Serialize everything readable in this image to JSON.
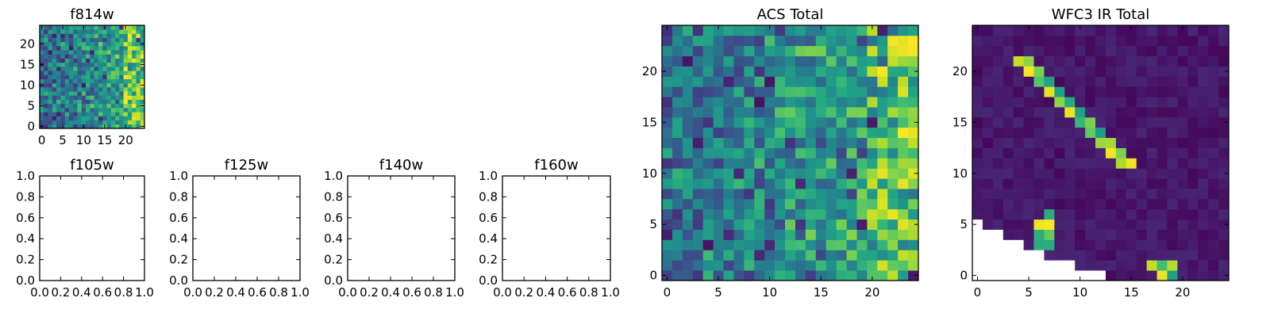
{
  "chart_data": [
    {
      "type": "heatmap",
      "title": "f814w",
      "xlim": [
        -0.5,
        24.5
      ],
      "ylim": [
        -0.5,
        24.5
      ],
      "xticks": [
        0,
        5,
        10,
        15,
        20
      ],
      "xtick_labels": [
        "0",
        "5",
        "10",
        "15",
        "20"
      ],
      "yticks": [
        0,
        5,
        10,
        15,
        20
      ],
      "ytick_labels": [
        "0",
        "5",
        "10",
        "15",
        "20"
      ],
      "grid_size": [
        25,
        25
      ],
      "colormap": "viridis",
      "pattern": "acs_noise",
      "seed": 17
    },
    {
      "type": "empty",
      "title": "f105w",
      "xlim": [
        0,
        1
      ],
      "ylim": [
        0,
        1
      ],
      "xticks": [
        0,
        0.2,
        0.4,
        0.6,
        0.8,
        1.0
      ],
      "xtick_labels": [
        "0.0",
        "0.2",
        "0.4",
        "0.6",
        "0.8",
        "1.0"
      ],
      "yticks": [
        0,
        0.2,
        0.4,
        0.6,
        0.8,
        1.0
      ],
      "ytick_labels": [
        "0.0",
        "0.2",
        "0.4",
        "0.6",
        "0.8",
        "1.0"
      ]
    },
    {
      "type": "empty",
      "title": "f125w",
      "xlim": [
        0,
        1
      ],
      "ylim": [
        0,
        1
      ],
      "xticks": [
        0,
        0.2,
        0.4,
        0.6,
        0.8,
        1.0
      ],
      "xtick_labels": [
        "0.0",
        "0.2",
        "0.4",
        "0.6",
        "0.8",
        "1.0"
      ],
      "yticks": [
        0,
        0.2,
        0.4,
        0.6,
        0.8,
        1.0
      ],
      "ytick_labels": [
        "0.0",
        "0.2",
        "0.4",
        "0.6",
        "0.8",
        "1.0"
      ]
    },
    {
      "type": "empty",
      "title": "f140w",
      "xlim": [
        0,
        1
      ],
      "ylim": [
        0,
        1
      ],
      "xticks": [
        0,
        0.2,
        0.4,
        0.6,
        0.8,
        1.0
      ],
      "xtick_labels": [
        "0.0",
        "0.2",
        "0.4",
        "0.6",
        "0.8",
        "1.0"
      ],
      "yticks": [
        0,
        0.2,
        0.4,
        0.6,
        0.8,
        1.0
      ],
      "ytick_labels": [
        "0.0",
        "0.2",
        "0.4",
        "0.6",
        "0.8",
        "1.0"
      ]
    },
    {
      "type": "empty",
      "title": "f160w",
      "xlim": [
        0,
        1
      ],
      "ylim": [
        0,
        1
      ],
      "xticks": [
        0,
        0.2,
        0.4,
        0.6,
        0.8,
        1.0
      ],
      "xtick_labels": [
        "0.0",
        "0.2",
        "0.4",
        "0.6",
        "0.8",
        "1.0"
      ],
      "yticks": [
        0,
        0.2,
        0.4,
        0.6,
        0.8,
        1.0
      ],
      "ytick_labels": [
        "0.0",
        "0.2",
        "0.4",
        "0.6",
        "0.8",
        "1.0"
      ]
    },
    {
      "type": "heatmap",
      "title": "ACS Total",
      "xlim": [
        -0.5,
        24.5
      ],
      "ylim": [
        -0.5,
        24.5
      ],
      "xticks": [
        0,
        5,
        10,
        15,
        20
      ],
      "xtick_labels": [
        "0",
        "5",
        "10",
        "15",
        "20"
      ],
      "yticks": [
        0,
        5,
        10,
        15,
        20
      ],
      "ytick_labels": [
        "0",
        "5",
        "10",
        "15",
        "20"
      ],
      "grid_size": [
        25,
        25
      ],
      "colormap": "viridis",
      "pattern": "acs_noise",
      "seed": 29
    },
    {
      "type": "heatmap",
      "title": "WFC3 IR Total",
      "xlim": [
        -0.5,
        24.5
      ],
      "ylim": [
        -0.5,
        24.5
      ],
      "xticks": [
        0,
        5,
        10,
        15,
        20
      ],
      "xtick_labels": [
        "0",
        "5",
        "10",
        "15",
        "20"
      ],
      "yticks": [
        0,
        5,
        10,
        15,
        20
      ],
      "ytick_labels": [
        "0",
        "5",
        "10",
        "15",
        "20"
      ],
      "grid_size": [
        25,
        25
      ],
      "colormap": "viridis",
      "pattern": "wfc3_streak",
      "seed": 43,
      "bright_cells": [
        [
          4,
          21
        ],
        [
          5,
          21
        ],
        [
          5,
          20
        ],
        [
          6,
          20
        ],
        [
          6,
          19
        ],
        [
          7,
          19
        ],
        [
          7,
          18
        ],
        [
          8,
          18
        ],
        [
          8,
          17
        ],
        [
          9,
          17
        ],
        [
          9,
          16
        ],
        [
          10,
          16
        ],
        [
          10,
          15
        ],
        [
          11,
          15
        ],
        [
          11,
          14
        ],
        [
          12,
          14
        ],
        [
          12,
          13
        ],
        [
          13,
          13
        ],
        [
          13,
          12
        ],
        [
          14,
          12
        ],
        [
          14,
          11
        ],
        [
          15,
          11
        ],
        [
          7,
          6
        ],
        [
          7,
          5
        ],
        [
          6,
          5
        ],
        [
          7,
          4
        ],
        [
          6,
          4
        ],
        [
          7,
          3
        ],
        [
          6,
          3
        ],
        [
          18,
          1
        ],
        [
          18,
          0
        ],
        [
          17,
          1
        ],
        [
          19,
          0
        ],
        [
          19,
          1
        ]
      ],
      "blank_cells": [
        [
          0,
          5
        ],
        [
          0,
          4
        ],
        [
          1,
          4
        ],
        [
          2,
          4
        ],
        [
          0,
          3
        ],
        [
          1,
          3
        ],
        [
          2,
          3
        ],
        [
          3,
          3
        ],
        [
          4,
          3
        ],
        [
          0,
          2
        ],
        [
          1,
          2
        ],
        [
          2,
          2
        ],
        [
          3,
          2
        ],
        [
          4,
          2
        ],
        [
          5,
          2
        ],
        [
          6,
          2
        ],
        [
          0,
          1
        ],
        [
          1,
          1
        ],
        [
          2,
          1
        ],
        [
          3,
          1
        ],
        [
          4,
          1
        ],
        [
          5,
          1
        ],
        [
          6,
          1
        ],
        [
          7,
          1
        ],
        [
          8,
          1
        ],
        [
          9,
          1
        ],
        [
          0,
          0
        ],
        [
          1,
          0
        ],
        [
          2,
          0
        ],
        [
          3,
          0
        ],
        [
          4,
          0
        ],
        [
          5,
          0
        ],
        [
          6,
          0
        ],
        [
          7,
          0
        ],
        [
          8,
          0
        ],
        [
          9,
          0
        ],
        [
          10,
          0
        ],
        [
          11,
          0
        ],
        [
          12,
          0
        ]
      ]
    }
  ]
}
